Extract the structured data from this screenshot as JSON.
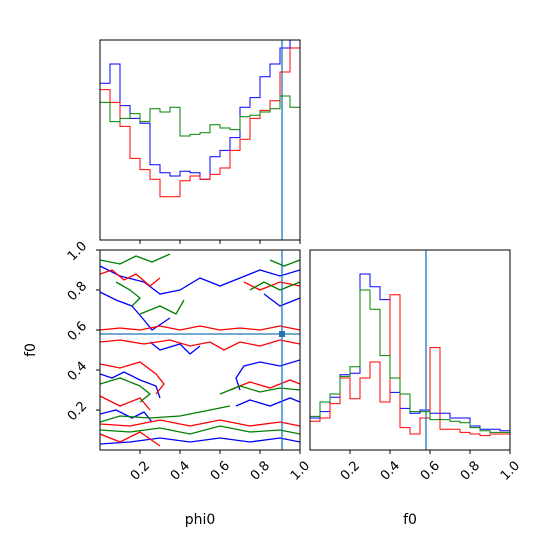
{
  "chart_data": [
    {
      "panel": "phi0-marginal",
      "type": "step-histogram",
      "x_variable": "phi0",
      "xlim": [
        0,
        1
      ],
      "truth_x": 0.91,
      "bin_edges": [
        0,
        0.05,
        0.1,
        0.15,
        0.2,
        0.25,
        0.3,
        0.35,
        0.4,
        0.45,
        0.5,
        0.55,
        0.6,
        0.65,
        0.7,
        0.75,
        0.8,
        0.85,
        0.9,
        0.95,
        1.0
      ],
      "series": [
        {
          "color": "#0000ff",
          "values": [
            0.98,
            1.1,
            0.84,
            0.76,
            0.73,
            0.47,
            0.42,
            0.4,
            0.43,
            0.42,
            0.38,
            0.52,
            0.56,
            0.64,
            0.83,
            0.89,
            1.02,
            1.1,
            1.2,
            1.25
          ]
        },
        {
          "color": "#ff0000",
          "values": [
            0.94,
            0.86,
            0.71,
            0.51,
            0.44,
            0.38,
            0.27,
            0.27,
            0.37,
            0.4,
            0.38,
            0.41,
            0.45,
            0.56,
            0.63,
            0.76,
            0.81,
            0.87,
            1.05,
            1.2
          ]
        },
        {
          "color": "#008000",
          "values": [
            0.86,
            0.74,
            0.76,
            0.79,
            0.74,
            0.82,
            0.8,
            0.83,
            0.65,
            0.66,
            0.67,
            0.72,
            0.7,
            0.69,
            0.77,
            0.78,
            0.8,
            0.82,
            0.9,
            0.83
          ]
        }
      ]
    },
    {
      "panel": "phi0-f0-joint",
      "type": "contour",
      "x_variable": "phi0",
      "y_variable": "f0",
      "xlim": [
        0,
        1
      ],
      "ylim": [
        0,
        1
      ],
      "x_ticks": [
        "0.2",
        "0.4",
        "0.6",
        "0.8",
        "1.0"
      ],
      "y_ticks": [
        "0.2",
        "0.4",
        "0.6",
        "0.8",
        "1.0"
      ],
      "xlabel": "phi0",
      "ylabel": "f0",
      "truth": [
        0.91,
        0.58
      ],
      "series": [
        {
          "color": "#0000ff",
          "contours": [
            [
              [
                0.0,
                0.92
              ],
              [
                0.1,
                0.87
              ],
              [
                0.22,
                0.84
              ],
              [
                0.3,
                0.78
              ],
              [
                0.4,
                0.8
              ],
              [
                0.5,
                0.86
              ],
              [
                0.6,
                0.82
              ],
              [
                0.7,
                0.86
              ],
              [
                0.8,
                0.9
              ],
              [
                0.9,
                0.87
              ],
              [
                1.0,
                0.9
              ]
            ],
            [
              [
                0.0,
                0.79
              ],
              [
                0.08,
                0.75
              ],
              [
                0.16,
                0.72
              ],
              [
                0.22,
                0.65
              ],
              [
                0.26,
                0.6
              ],
              [
                0.35,
                0.66
              ]
            ],
            [
              [
                0.25,
                0.54
              ],
              [
                0.3,
                0.5
              ],
              [
                0.4,
                0.53
              ],
              [
                0.45,
                0.48
              ],
              [
                0.5,
                0.52
              ]
            ],
            [
              [
                0.0,
                0.38
              ],
              [
                0.06,
                0.36
              ],
              [
                0.12,
                0.39
              ],
              [
                0.2,
                0.35
              ],
              [
                0.28,
                0.32
              ],
              [
                0.3,
                0.26
              ]
            ],
            [
              [
                0.0,
                0.18
              ],
              [
                0.08,
                0.2
              ],
              [
                0.16,
                0.16
              ],
              [
                0.22,
                0.19
              ],
              [
                0.26,
                0.14
              ]
            ],
            [
              [
                0.0,
                0.03
              ],
              [
                0.15,
                0.04
              ],
              [
                0.3,
                0.06
              ],
              [
                0.45,
                0.04
              ],
              [
                0.6,
                0.06
              ],
              [
                0.75,
                0.04
              ],
              [
                0.9,
                0.06
              ],
              [
                1.0,
                0.04
              ]
            ],
            [
              [
                0.7,
                0.3
              ],
              [
                0.68,
                0.36
              ],
              [
                0.72,
                0.42
              ],
              [
                0.8,
                0.44
              ],
              [
                0.9,
                0.42
              ],
              [
                1.0,
                0.45
              ]
            ],
            [
              [
                0.68,
                0.22
              ],
              [
                0.75,
                0.25
              ],
              [
                0.85,
                0.22
              ],
              [
                0.95,
                0.26
              ],
              [
                1.0,
                0.24
              ]
            ],
            [
              [
                0.82,
                0.78
              ],
              [
                0.9,
                0.72
              ],
              [
                1.0,
                0.76
              ]
            ]
          ]
        },
        {
          "color": "#ff0000",
          "contours": [
            [
              [
                0.0,
                0.88
              ],
              [
                0.06,
                0.9
              ],
              [
                0.12,
                0.85
              ],
              [
                0.18,
                0.88
              ],
              [
                0.25,
                0.82
              ],
              [
                0.3,
                0.86
              ]
            ],
            [
              [
                0.0,
                0.6
              ],
              [
                0.1,
                0.61
              ],
              [
                0.2,
                0.6
              ],
              [
                0.3,
                0.62
              ],
              [
                0.4,
                0.6
              ],
              [
                0.5,
                0.62
              ],
              [
                0.6,
                0.6
              ],
              [
                0.7,
                0.61
              ],
              [
                0.8,
                0.6
              ],
              [
                0.9,
                0.62
              ],
              [
                1.0,
                0.6
              ]
            ],
            [
              [
                0.0,
                0.54
              ],
              [
                0.1,
                0.55
              ],
              [
                0.22,
                0.53
              ],
              [
                0.35,
                0.55
              ],
              [
                0.45,
                0.52
              ],
              [
                0.55,
                0.54
              ],
              [
                0.62,
                0.5
              ],
              [
                0.7,
                0.54
              ],
              [
                0.8,
                0.52
              ],
              [
                0.9,
                0.55
              ],
              [
                1.0,
                0.53
              ]
            ],
            [
              [
                0.0,
                0.43
              ],
              [
                0.1,
                0.41
              ],
              [
                0.2,
                0.44
              ],
              [
                0.28,
                0.38
              ],
              [
                0.32,
                0.33
              ],
              [
                0.28,
                0.28
              ]
            ],
            [
              [
                0.0,
                0.27
              ],
              [
                0.1,
                0.22
              ],
              [
                0.2,
                0.26
              ],
              [
                0.25,
                0.2
              ]
            ],
            [
              [
                0.0,
                0.13
              ],
              [
                0.15,
                0.12
              ],
              [
                0.3,
                0.15
              ],
              [
                0.45,
                0.12
              ],
              [
                0.6,
                0.15
              ],
              [
                0.75,
                0.12
              ],
              [
                0.9,
                0.14
              ],
              [
                1.0,
                0.12
              ]
            ],
            [
              [
                0.0,
                0.08
              ],
              [
                0.1,
                0.04
              ],
              [
                0.2,
                0.09
              ],
              [
                0.3,
                0.02
              ]
            ],
            [
              [
                0.65,
                0.3
              ],
              [
                0.75,
                0.34
              ],
              [
                0.85,
                0.31
              ],
              [
                0.95,
                0.35
              ],
              [
                1.0,
                0.33
              ]
            ],
            [
              [
                0.72,
                0.84
              ],
              [
                0.8,
                0.8
              ],
              [
                0.9,
                0.84
              ],
              [
                1.0,
                0.82
              ]
            ]
          ]
        },
        {
          "color": "#008000",
          "contours": [
            [
              [
                0.0,
                0.95
              ],
              [
                0.1,
                0.93
              ],
              [
                0.18,
                0.97
              ],
              [
                0.26,
                0.94
              ],
              [
                0.35,
                0.98
              ]
            ],
            [
              [
                0.08,
                0.84
              ],
              [
                0.15,
                0.8
              ],
              [
                0.2,
                0.76
              ],
              [
                0.16,
                0.72
              ]
            ],
            [
              [
                0.2,
                0.68
              ],
              [
                0.3,
                0.72
              ],
              [
                0.38,
                0.68
              ],
              [
                0.42,
                0.75
              ]
            ],
            [
              [
                0.0,
                0.33
              ],
              [
                0.1,
                0.36
              ],
              [
                0.2,
                0.32
              ],
              [
                0.25,
                0.28
              ],
              [
                0.2,
                0.24
              ]
            ],
            [
              [
                0.0,
                0.14
              ],
              [
                0.1,
                0.17
              ],
              [
                0.25,
                0.16
              ],
              [
                0.4,
                0.17
              ],
              [
                0.55,
                0.2
              ],
              [
                0.65,
                0.22
              ]
            ],
            [
              [
                0.0,
                0.1
              ],
              [
                0.15,
                0.09
              ],
              [
                0.3,
                0.11
              ],
              [
                0.45,
                0.08
              ],
              [
                0.6,
                0.12
              ],
              [
                0.75,
                0.09
              ],
              [
                0.9,
                0.1
              ],
              [
                1.0,
                0.08
              ]
            ],
            [
              [
                0.6,
                0.28
              ],
              [
                0.7,
                0.32
              ],
              [
                0.8,
                0.29
              ],
              [
                0.9,
                0.31
              ],
              [
                1.0,
                0.3
              ]
            ],
            [
              [
                0.75,
                0.8
              ],
              [
                0.82,
                0.84
              ],
              [
                0.9,
                0.8
              ],
              [
                1.0,
                0.84
              ]
            ],
            [
              [
                0.85,
                0.95
              ],
              [
                0.92,
                0.92
              ],
              [
                1.0,
                0.95
              ]
            ]
          ]
        }
      ]
    },
    {
      "panel": "f0-marginal",
      "type": "step-histogram",
      "x_variable": "f0",
      "xlim": [
        0,
        1
      ],
      "x_ticks": [
        "0.2",
        "0.4",
        "0.6",
        "0.8",
        "1.0"
      ],
      "xlabel": "f0",
      "truth_x": 0.58,
      "bin_edges": [
        0,
        0.05,
        0.1,
        0.15,
        0.2,
        0.25,
        0.3,
        0.35,
        0.4,
        0.45,
        0.5,
        0.55,
        0.6,
        0.65,
        0.7,
        0.75,
        0.8,
        0.85,
        0.9,
        0.95,
        1.0
      ],
      "series": [
        {
          "color": "#0000ff",
          "values": [
            0.2,
            0.24,
            0.33,
            0.47,
            0.48,
            1.1,
            1.02,
            0.94,
            0.36,
            0.26,
            0.23,
            0.25,
            0.23,
            0.23,
            0.2,
            0.2,
            0.15,
            0.13,
            0.13,
            0.12
          ]
        },
        {
          "color": "#ff0000",
          "values": [
            0.18,
            0.2,
            0.29,
            0.45,
            0.32,
            0.45,
            0.55,
            0.3,
            0.97,
            0.14,
            0.1,
            0.2,
            0.64,
            0.13,
            0.13,
            0.11,
            0.1,
            0.09,
            0.1,
            0.1
          ]
        },
        {
          "color": "#008000",
          "values": [
            0.21,
            0.3,
            0.35,
            0.46,
            0.52,
            1.0,
            0.88,
            0.59,
            0.45,
            0.35,
            0.24,
            0.24,
            0.19,
            0.19,
            0.18,
            0.17,
            0.14,
            0.12,
            0.11,
            0.11
          ]
        }
      ]
    }
  ]
}
